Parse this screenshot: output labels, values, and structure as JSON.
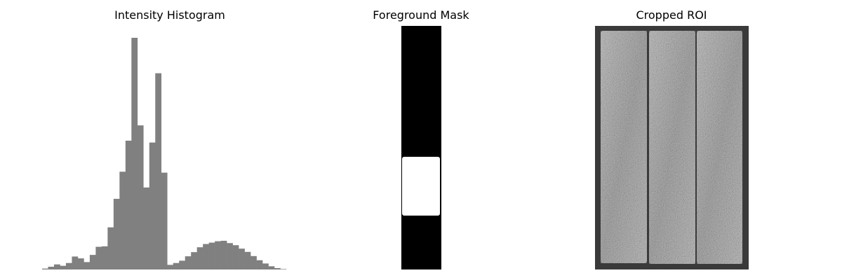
{
  "panels": {
    "histogram_title": "Intensity Histogram",
    "mask_title": "Foreground Mask",
    "roi_title": "Cropped ROI"
  },
  "chart_data": [
    {
      "type": "bar",
      "title": "Intensity Histogram",
      "xlabel": "",
      "ylabel": "",
      "axes_visible": false,
      "grid": false,
      "bar_color": "#808080",
      "values": [
        0.4,
        1.2,
        2.2,
        1.6,
        2.8,
        5.6,
        4.8,
        3.2,
        6.3,
        9.8,
        10.0,
        18.2,
        30.5,
        42.2,
        55.6,
        100.0,
        62.2,
        35.4,
        54.8,
        84.7,
        41.8,
        2.0,
        2.8,
        3.8,
        5.7,
        7.5,
        9.6,
        11.0,
        11.6,
        12.2,
        12.4,
        11.4,
        10.5,
        9.0,
        7.6,
        5.8,
        4.0,
        2.6,
        1.4,
        0.6,
        0.2
      ],
      "ylim": [
        0,
        100
      ]
    }
  ],
  "images": {
    "mask": {
      "kind": "binary-mask",
      "background": "#000000",
      "foreground": "#ffffff"
    },
    "roi": {
      "kind": "grayscale-crop",
      "frame_color": "#3a3a3a",
      "panel_count": 3,
      "panel_fill": "#b8b8b8"
    }
  }
}
